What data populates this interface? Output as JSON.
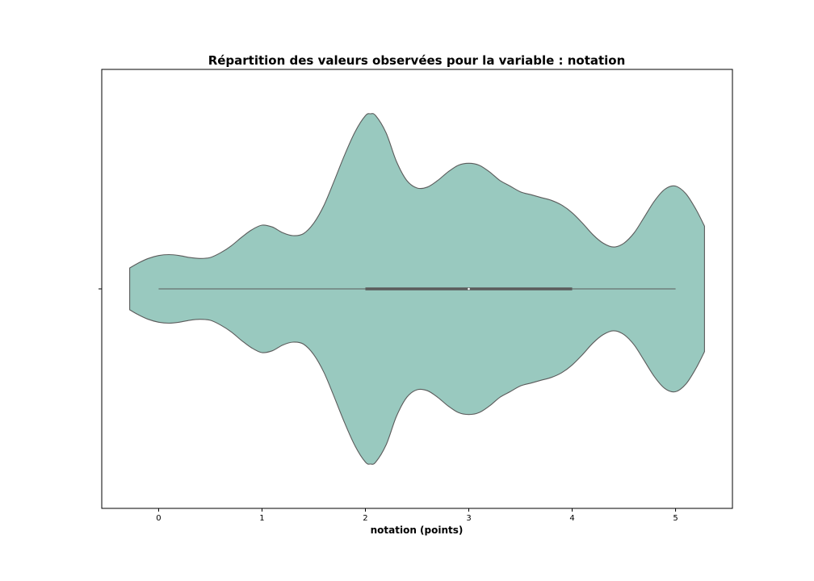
{
  "chart_data": {
    "type": "violin",
    "title": "Répartition des valeurs observées pour la variable : notation",
    "xlabel": "notation (points)",
    "ylabel": "",
    "xlim": [
      -0.55,
      5.55
    ],
    "xticks": [
      0,
      1,
      2,
      3,
      4,
      5
    ],
    "xtick_labels": [
      "0",
      "1",
      "2",
      "3",
      "4",
      "5"
    ],
    "orientation": "horizontal",
    "grid": false,
    "colors": {
      "fill": "#99c9bf",
      "edge": "#5b5b5b",
      "box": "#5b5b5b",
      "median": "#ffffff"
    },
    "summary": {
      "min": 0,
      "q1": 2,
      "median": 3,
      "q3": 4,
      "max": 5
    },
    "density": {
      "x": [
        -0.28,
        -0.2,
        -0.1,
        0.0,
        0.1,
        0.2,
        0.3,
        0.4,
        0.5,
        0.6,
        0.7,
        0.8,
        0.9,
        1.0,
        1.1,
        1.2,
        1.3,
        1.4,
        1.5,
        1.6,
        1.7,
        1.8,
        1.9,
        2.0,
        2.05,
        2.1,
        2.2,
        2.3,
        2.4,
        2.5,
        2.6,
        2.7,
        2.8,
        2.9,
        3.0,
        3.1,
        3.2,
        3.3,
        3.4,
        3.5,
        3.6,
        3.7,
        3.8,
        3.9,
        4.0,
        4.1,
        4.2,
        4.3,
        4.4,
        4.5,
        4.6,
        4.7,
        4.8,
        4.9,
        5.0,
        5.1,
        5.2,
        5.28
      ],
      "y": [
        0.22,
        0.27,
        0.32,
        0.35,
        0.36,
        0.35,
        0.33,
        0.32,
        0.33,
        0.38,
        0.45,
        0.54,
        0.62,
        0.67,
        0.65,
        0.59,
        0.56,
        0.58,
        0.69,
        0.88,
        1.14,
        1.41,
        1.65,
        1.82,
        1.84,
        1.82,
        1.64,
        1.34,
        1.14,
        1.06,
        1.07,
        1.14,
        1.23,
        1.3,
        1.32,
        1.3,
        1.23,
        1.14,
        1.08,
        1.02,
        0.99,
        0.96,
        0.93,
        0.88,
        0.8,
        0.69,
        0.57,
        0.48,
        0.44,
        0.48,
        0.59,
        0.76,
        0.93,
        1.05,
        1.08,
        1.0,
        0.83,
        0.66
      ]
    }
  }
}
